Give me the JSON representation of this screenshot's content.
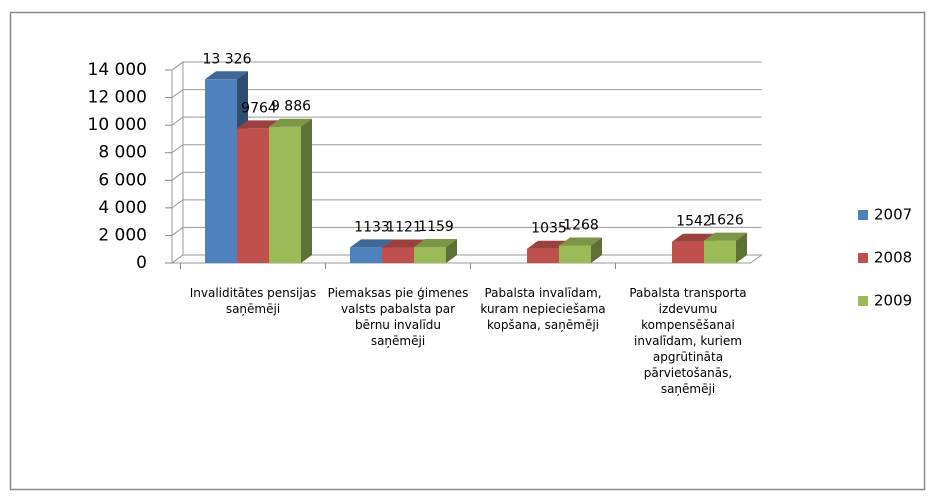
{
  "chart_data": {
    "type": "bar3d",
    "categories": [
      "Invaliditātes pensijas saņēmēji",
      "Piemaksas pie ģimenes valsts pabalsta par bērnu invalīdu saņēmēji",
      "Pabalsta invalīdam, kuram nepieciešama kopšana, saņēmēji",
      "Pabalsta transporta izdevumu kompensēšanai invalīdam, kuriem apgrūtināta pārvietošanās, saņēmēji"
    ],
    "series": [
      {
        "name": "2007",
        "color": "#4f81bd",
        "values": [
          13326,
          1133,
          null,
          null
        ],
        "value_labels": [
          "13 326",
          "1133",
          null,
          null
        ]
      },
      {
        "name": "2008",
        "color": "#c0504d",
        "values": [
          9764,
          1121,
          1035,
          1542
        ],
        "value_labels": [
          "9764",
          "1121",
          "1035",
          "1542"
        ]
      },
      {
        "name": "2009",
        "color": "#9bbb59",
        "values": [
          9886,
          1159,
          1268,
          1626
        ],
        "value_labels": [
          "9 886",
          "1159",
          "1268",
          "1626"
        ]
      }
    ],
    "ylim": [
      0,
      14000
    ],
    "yticks": [
      0,
      {
        "value": 2000,
        "label": "2 000"
      },
      {
        "value": 4000,
        "label": "4 000"
      },
      {
        "value": 6000,
        "label": "6 000"
      },
      {
        "value": 8000,
        "label": "8 000"
      },
      {
        "value": 10000,
        "label": "10 000"
      },
      {
        "value": 12000,
        "label": "12 000"
      },
      {
        "value": 14000,
        "label": "14 000"
      }
    ],
    "grid": true,
    "legend": "right"
  }
}
